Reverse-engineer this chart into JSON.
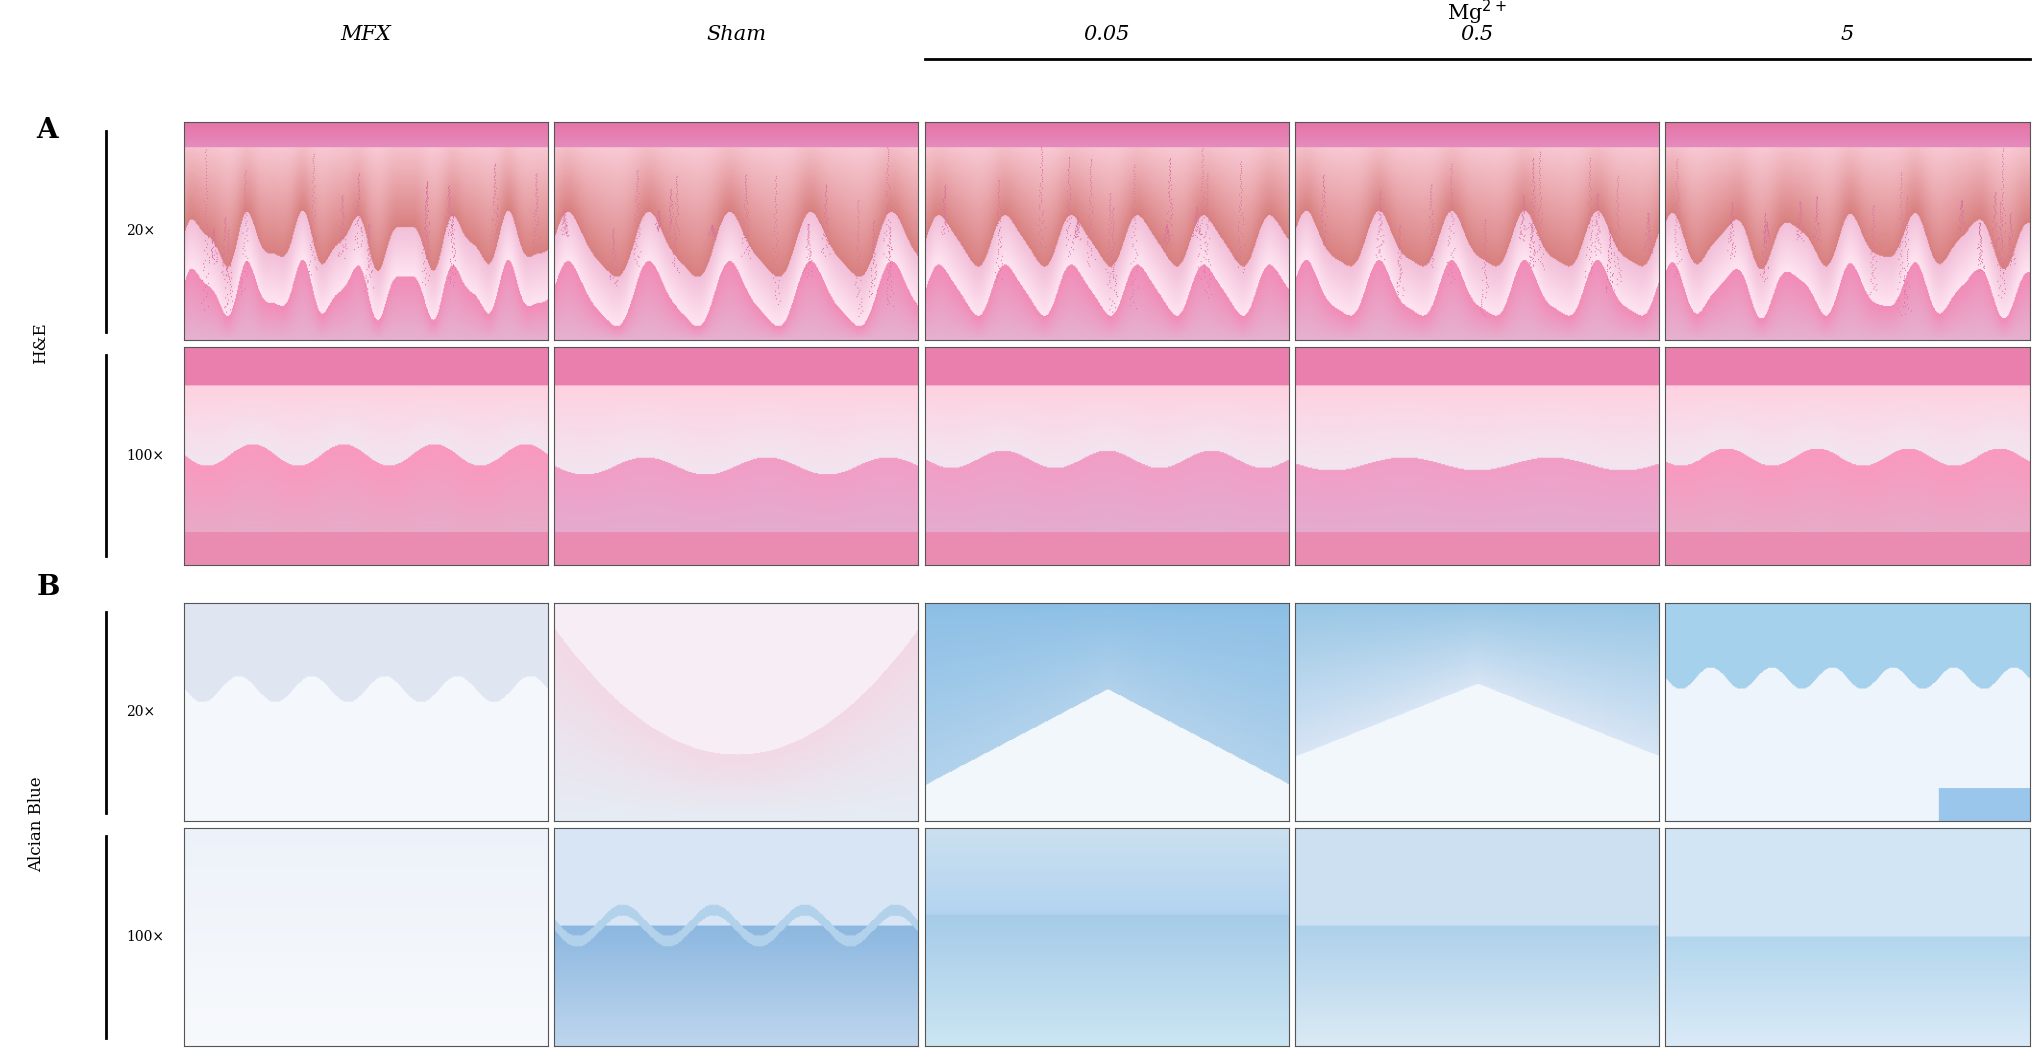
{
  "fig_width": 20.4,
  "fig_height": 10.62,
  "dpi": 100,
  "background_color": "#ffffff",
  "panel_A_label": "A",
  "panel_B_label": "B",
  "col_headers": [
    "MFX",
    "Sham",
    "0.05",
    "0.5",
    "5"
  ],
  "mg2plus_label": "Mg$^{2+}$",
  "row_label_A1": "20×",
  "row_label_A2": "100×",
  "row_label_B1": "20×",
  "row_label_B2": "100×",
  "left_label_A": "H&E",
  "left_label_B": "Alcian Blue",
  "n_cols": 5,
  "text_color": "#000000"
}
